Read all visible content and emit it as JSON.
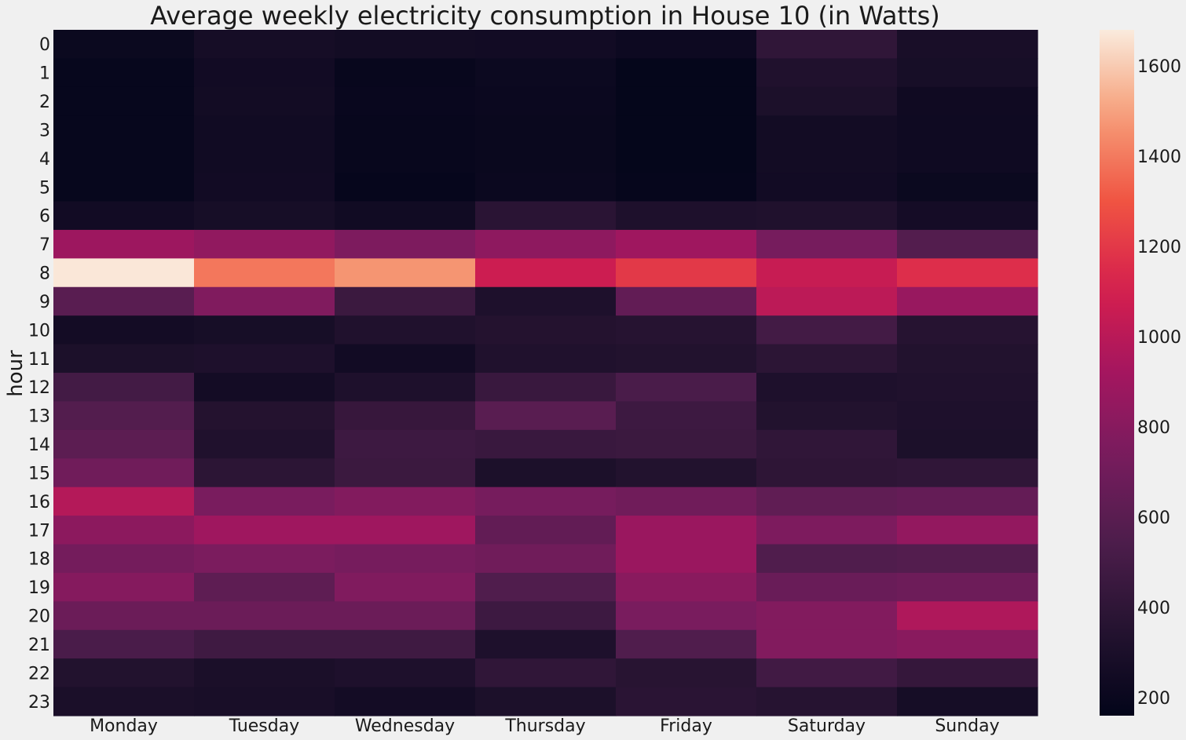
{
  "chart_data": {
    "type": "heatmap",
    "title": "Average weekly electricity consumption in House 10 (in Watts)",
    "xlabel": "",
    "ylabel": "hour",
    "x_categories": [
      "Monday",
      "Tuesday",
      "Wednesday",
      "Thursday",
      "Friday",
      "Saturday",
      "Sunday"
    ],
    "y_categories": [
      "0",
      "1",
      "2",
      "3",
      "4",
      "5",
      "6",
      "7",
      "8",
      "9",
      "10",
      "11",
      "12",
      "13",
      "14",
      "15",
      "16",
      "17",
      "18",
      "19",
      "20",
      "21",
      "22",
      "23"
    ],
    "values": [
      [
        210,
        270,
        255,
        250,
        220,
        410,
        290
      ],
      [
        185,
        250,
        190,
        215,
        170,
        330,
        280
      ],
      [
        185,
        255,
        195,
        205,
        170,
        310,
        235
      ],
      [
        185,
        245,
        190,
        200,
        170,
        255,
        230
      ],
      [
        185,
        245,
        190,
        200,
        170,
        255,
        230
      ],
      [
        185,
        250,
        180,
        205,
        175,
        250,
        210
      ],
      [
        250,
        280,
        245,
        380,
        320,
        330,
        265
      ],
      [
        890,
        840,
        760,
        830,
        900,
        730,
        570
      ],
      [
        1670,
        1390,
        1470,
        1070,
        1200,
        1050,
        1160
      ],
      [
        600,
        770,
        460,
        320,
        640,
        1010,
        870
      ],
      [
        260,
        280,
        330,
        350,
        360,
        500,
        360
      ],
      [
        310,
        320,
        250,
        330,
        340,
        390,
        340
      ],
      [
        500,
        260,
        320,
        450,
        530,
        320,
        330
      ],
      [
        570,
        350,
        440,
        600,
        470,
        340,
        320
      ],
      [
        610,
        330,
        470,
        450,
        460,
        410,
        310
      ],
      [
        700,
        390,
        460,
        310,
        340,
        400,
        410
      ],
      [
        980,
        740,
        780,
        730,
        700,
        630,
        650
      ],
      [
        820,
        900,
        900,
        640,
        880,
        760,
        850
      ],
      [
        720,
        750,
        730,
        700,
        880,
        560,
        570
      ],
      [
        790,
        620,
        770,
        560,
        810,
        670,
        690
      ],
      [
        680,
        680,
        680,
        470,
        740,
        780,
        960
      ],
      [
        530,
        480,
        480,
        320,
        560,
        780,
        810
      ],
      [
        340,
        300,
        320,
        410,
        370,
        490,
        430
      ],
      [
        300,
        290,
        260,
        310,
        380,
        360,
        270
      ]
    ],
    "zlim": [
      160,
      1680
    ],
    "colorbar_ticks": [
      200,
      400,
      600,
      800,
      1000,
      1200,
      1400,
      1600
    ],
    "colormap": "rocket",
    "grid": false,
    "legend": "colorbar-right"
  }
}
